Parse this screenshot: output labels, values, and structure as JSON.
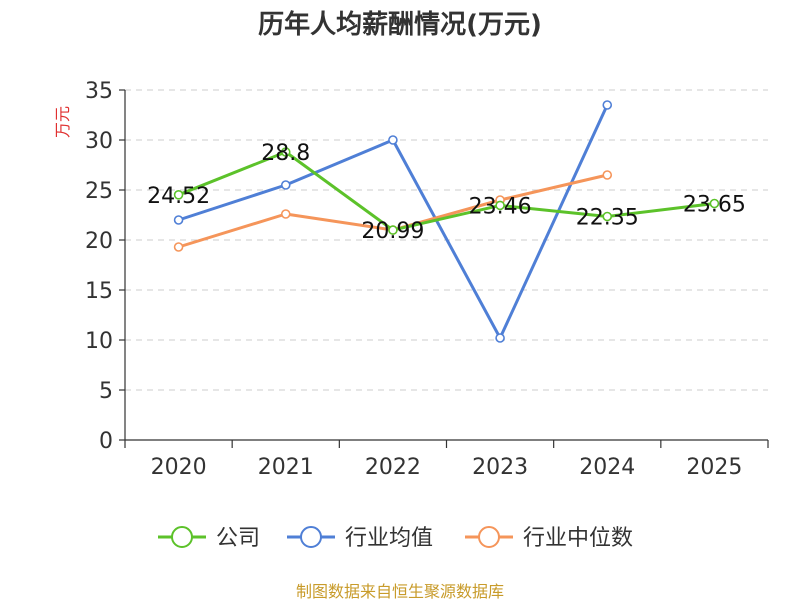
{
  "chart_data": {
    "type": "line",
    "title": "历年人均薪酬情况(万元)",
    "ylabel": "万元",
    "xlabel": "",
    "categories": [
      "2020",
      "2021",
      "2022",
      "2023",
      "2024",
      "2025"
    ],
    "ylim": [
      0,
      35
    ],
    "yticks": [
      0,
      5,
      10,
      15,
      20,
      25,
      30,
      35
    ],
    "grid": true,
    "legend_position": "bottom",
    "series": [
      {
        "name": "公司",
        "color": "#5cc22a",
        "values": [
          24.52,
          28.8,
          20.99,
          23.46,
          22.35,
          23.65
        ],
        "labels": [
          "24.52",
          "28.8",
          "20.99",
          "23.46",
          "22.35",
          "23.65"
        ]
      },
      {
        "name": "行业均值",
        "color": "#4f7fd6",
        "values": [
          22.0,
          25.5,
          30.0,
          10.2,
          33.5,
          null
        ]
      },
      {
        "name": "行业中位数",
        "color": "#f5955a",
        "values": [
          19.3,
          22.6,
          21.0,
          24.0,
          26.5,
          null
        ]
      }
    ]
  },
  "footer": {
    "source": "制图数据来自恒生聚源数据库"
  }
}
